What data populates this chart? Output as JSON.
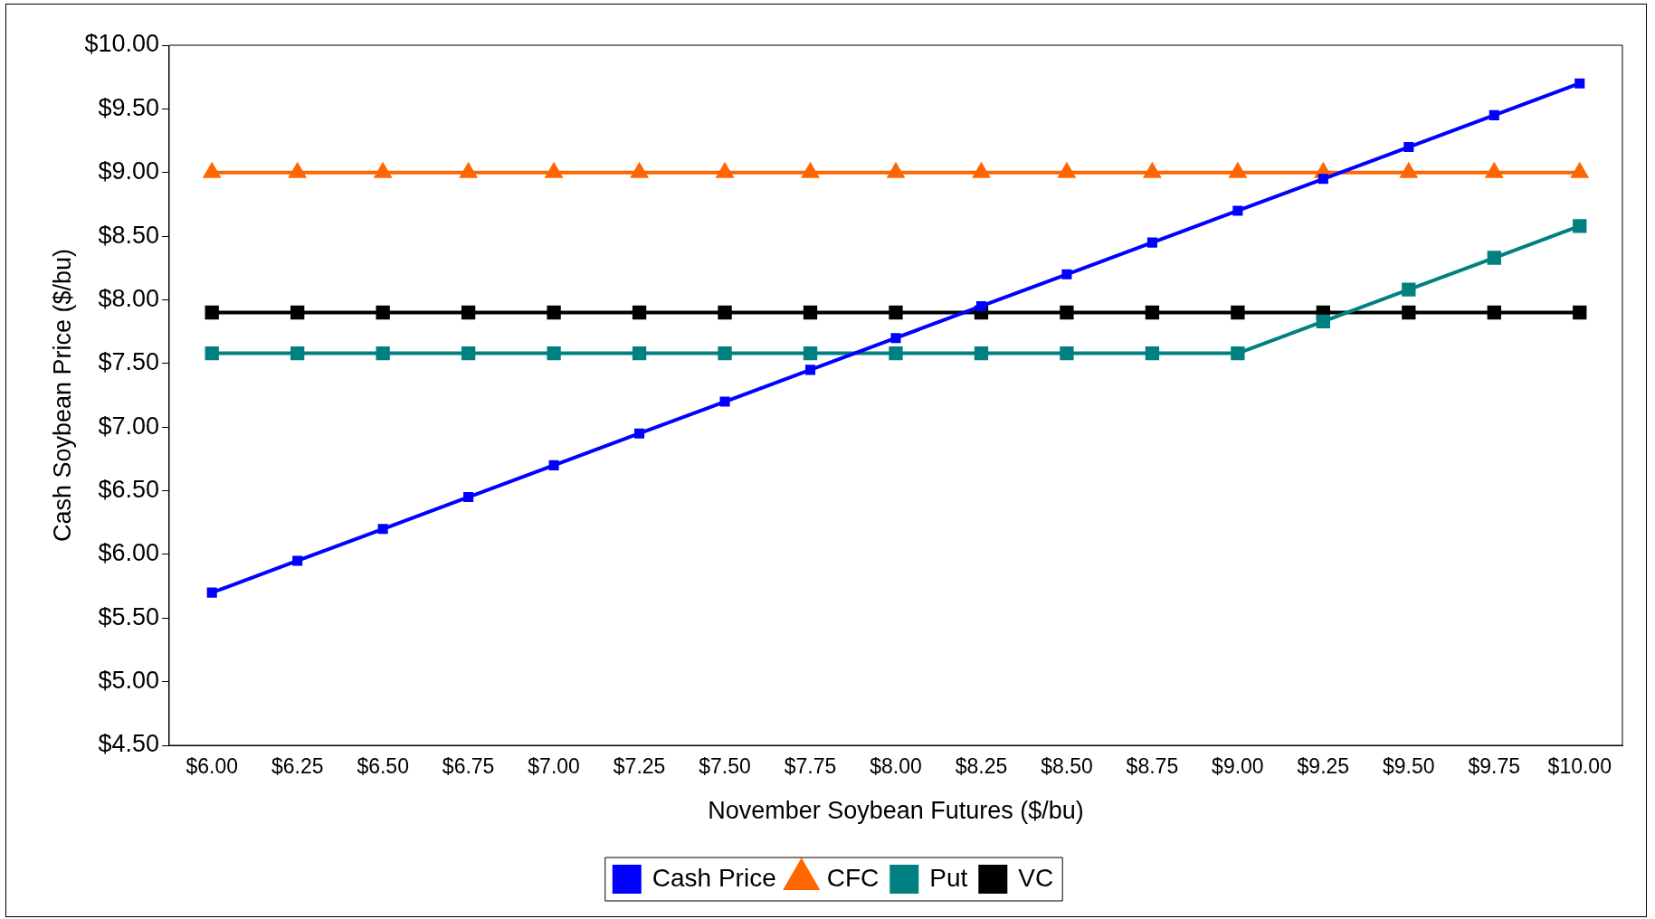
{
  "chart_data": {
    "type": "line",
    "xlabel": "November Soybean Futures ($/bu)",
    "ylabel": "Cash Soybean Price ($/bu)",
    "categories": [
      "$6.00",
      "$6.25",
      "$6.50",
      "$6.75",
      "$7.00",
      "$7.25",
      "$7.50",
      "$7.75",
      "$8.00",
      "$8.25",
      "$8.50",
      "$8.75",
      "$9.00",
      "$9.25",
      "$9.50",
      "$9.75",
      "$10.00"
    ],
    "series": [
      {
        "name": "Cash Price",
        "color": "#0000ff",
        "marker": "square",
        "values": [
          5.7,
          5.95,
          6.2,
          6.45,
          6.7,
          6.95,
          7.2,
          7.45,
          7.7,
          7.95,
          8.2,
          8.45,
          8.7,
          8.95,
          9.2,
          9.45,
          9.7
        ]
      },
      {
        "name": "CFC",
        "color": "#ff6600",
        "marker": "triangle",
        "values": [
          9.0,
          9.0,
          9.0,
          9.0,
          9.0,
          9.0,
          9.0,
          9.0,
          9.0,
          9.0,
          9.0,
          9.0,
          9.0,
          9.0,
          9.0,
          9.0,
          9.0
        ]
      },
      {
        "name": "Put",
        "color": "#008080",
        "marker": "square",
        "values": [
          7.58,
          7.58,
          7.58,
          7.58,
          7.58,
          7.58,
          7.58,
          7.58,
          7.58,
          7.58,
          7.58,
          7.58,
          7.58,
          7.83,
          8.08,
          8.33,
          8.58
        ]
      },
      {
        "name": "VC",
        "color": "#000000",
        "marker": "square",
        "values": [
          7.9,
          7.9,
          7.9,
          7.9,
          7.9,
          7.9,
          7.9,
          7.9,
          7.9,
          7.9,
          7.9,
          7.9,
          7.9,
          7.9,
          7.9,
          7.9,
          7.9
        ]
      }
    ],
    "ylim": [
      4.5,
      10
    ],
    "yticks": [
      {
        "value": 4.5,
        "label": "$4.50"
      },
      {
        "value": 5,
        "label": "$5.00"
      },
      {
        "value": 5.5,
        "label": "$5.50"
      },
      {
        "value": 6,
        "label": "$6.00"
      },
      {
        "value": 6.5,
        "label": "$6.50"
      },
      {
        "value": 7,
        "label": "$7.00"
      },
      {
        "value": 7.5,
        "label": "$7.50"
      },
      {
        "value": 8,
        "label": "$8.00"
      },
      {
        "value": 8.5,
        "label": "$8.50"
      },
      {
        "value": 9,
        "label": "$9.00"
      },
      {
        "value": 9.5,
        "label": "$9.50"
      },
      {
        "value": 10,
        "label": "$10.00"
      }
    ],
    "grid": false,
    "legend": "bottom",
    "line_style": "solid"
  }
}
